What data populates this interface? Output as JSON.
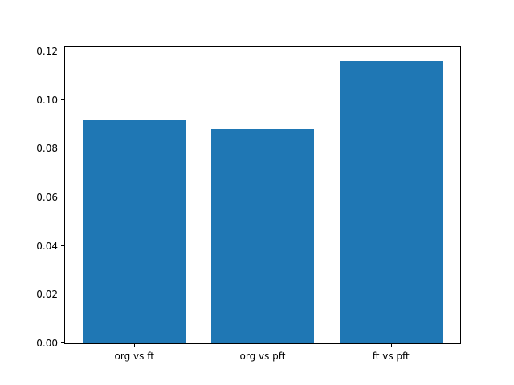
{
  "chart_data": {
    "type": "bar",
    "categories": [
      "org vs ft",
      "org vs pft",
      "ft vs pft"
    ],
    "values": [
      0.092,
      0.088,
      0.116
    ],
    "title": "",
    "xlabel": "",
    "ylabel": "",
    "ylim": [
      0,
      0.122
    ],
    "yticks": [
      "0.00",
      "0.02",
      "0.04",
      "0.06",
      "0.08",
      "0.10",
      "0.12"
    ],
    "bar_color": "#1f77b4",
    "spine_color": "#000000",
    "grid": false,
    "legend": "none"
  }
}
